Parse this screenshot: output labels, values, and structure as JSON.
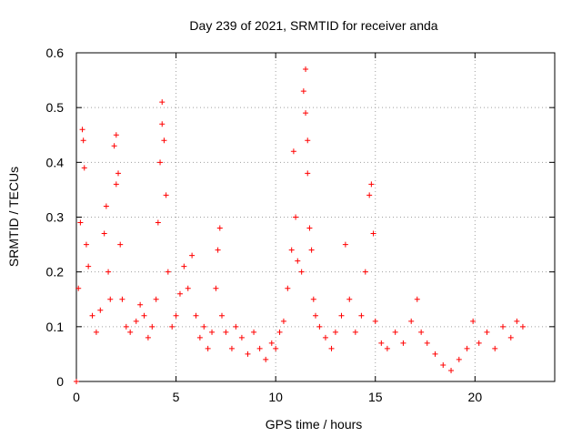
{
  "chart_data": {
    "type": "scatter",
    "title": "Day 239 of 2021, SRMTID for receiver anda",
    "xlabel": "GPS time / hours",
    "ylabel": "SRMTID / TECUs",
    "xlim": [
      0,
      24
    ],
    "ylim": [
      0,
      0.6
    ],
    "xticks": [
      0,
      5,
      10,
      15,
      20
    ],
    "xtick_labels": [
      "0",
      "5",
      "10",
      "15",
      "20"
    ],
    "yticks": [
      0,
      0.1,
      0.2,
      0.3,
      0.4,
      0.5,
      0.6
    ],
    "ytick_labels": [
      "0",
      "0.1",
      "0.2",
      "0.3",
      "0.4",
      "0.5",
      "0.6"
    ],
    "grid": true,
    "marker": "+",
    "series": [
      {
        "name": "SRMTID",
        "color": "#ff0000",
        "points": [
          [
            0.0,
            0.0
          ],
          [
            0.1,
            0.17
          ],
          [
            0.2,
            0.29
          ],
          [
            0.3,
            0.46
          ],
          [
            0.35,
            0.44
          ],
          [
            0.4,
            0.39
          ],
          [
            0.5,
            0.25
          ],
          [
            0.6,
            0.21
          ],
          [
            0.8,
            0.12
          ],
          [
            1.0,
            0.09
          ],
          [
            1.2,
            0.13
          ],
          [
            1.4,
            0.27
          ],
          [
            1.5,
            0.32
          ],
          [
            1.6,
            0.2
          ],
          [
            1.7,
            0.15
          ],
          [
            1.9,
            0.43
          ],
          [
            2.0,
            0.45
          ],
          [
            2.0,
            0.36
          ],
          [
            2.1,
            0.38
          ],
          [
            2.2,
            0.25
          ],
          [
            2.3,
            0.15
          ],
          [
            2.5,
            0.1
          ],
          [
            2.7,
            0.09
          ],
          [
            3.0,
            0.11
          ],
          [
            3.2,
            0.14
          ],
          [
            3.4,
            0.12
          ],
          [
            3.6,
            0.08
          ],
          [
            3.8,
            0.1
          ],
          [
            4.0,
            0.15
          ],
          [
            4.1,
            0.29
          ],
          [
            4.2,
            0.4
          ],
          [
            4.3,
            0.47
          ],
          [
            4.3,
            0.51
          ],
          [
            4.4,
            0.44
          ],
          [
            4.5,
            0.34
          ],
          [
            4.6,
            0.2
          ],
          [
            4.8,
            0.1
          ],
          [
            5.0,
            0.12
          ],
          [
            5.2,
            0.16
          ],
          [
            5.4,
            0.21
          ],
          [
            5.6,
            0.17
          ],
          [
            5.8,
            0.23
          ],
          [
            6.0,
            0.12
          ],
          [
            6.2,
            0.08
          ],
          [
            6.4,
            0.1
          ],
          [
            6.6,
            0.06
          ],
          [
            6.8,
            0.09
          ],
          [
            7.0,
            0.17
          ],
          [
            7.1,
            0.24
          ],
          [
            7.2,
            0.28
          ],
          [
            7.3,
            0.12
          ],
          [
            7.5,
            0.09
          ],
          [
            7.8,
            0.06
          ],
          [
            8.0,
            0.1
          ],
          [
            8.3,
            0.08
          ],
          [
            8.6,
            0.05
          ],
          [
            8.9,
            0.09
          ],
          [
            9.2,
            0.06
          ],
          [
            9.5,
            0.04
          ],
          [
            9.8,
            0.07
          ],
          [
            10.0,
            0.06
          ],
          [
            10.2,
            0.09
          ],
          [
            10.4,
            0.11
          ],
          [
            10.6,
            0.17
          ],
          [
            10.8,
            0.24
          ],
          [
            10.9,
            0.42
          ],
          [
            11.0,
            0.3
          ],
          [
            11.1,
            0.22
          ],
          [
            11.3,
            0.2
          ],
          [
            11.4,
            0.53
          ],
          [
            11.5,
            0.57
          ],
          [
            11.5,
            0.49
          ],
          [
            11.6,
            0.44
          ],
          [
            11.6,
            0.38
          ],
          [
            11.7,
            0.28
          ],
          [
            11.8,
            0.24
          ],
          [
            11.9,
            0.15
          ],
          [
            12.0,
            0.12
          ],
          [
            12.2,
            0.1
          ],
          [
            12.5,
            0.08
          ],
          [
            12.8,
            0.06
          ],
          [
            13.0,
            0.09
          ],
          [
            13.3,
            0.12
          ],
          [
            13.5,
            0.25
          ],
          [
            13.7,
            0.15
          ],
          [
            14.0,
            0.09
          ],
          [
            14.3,
            0.12
          ],
          [
            14.5,
            0.2
          ],
          [
            14.7,
            0.34
          ],
          [
            14.8,
            0.36
          ],
          [
            14.9,
            0.27
          ],
          [
            15.0,
            0.11
          ],
          [
            15.3,
            0.07
          ],
          [
            15.6,
            0.06
          ],
          [
            16.0,
            0.09
          ],
          [
            16.4,
            0.07
          ],
          [
            16.8,
            0.11
          ],
          [
            17.1,
            0.15
          ],
          [
            17.3,
            0.09
          ],
          [
            17.6,
            0.07
          ],
          [
            18.0,
            0.05
          ],
          [
            18.4,
            0.03
          ],
          [
            18.8,
            0.02
          ],
          [
            19.2,
            0.04
          ],
          [
            19.6,
            0.06
          ],
          [
            19.9,
            0.11
          ],
          [
            20.2,
            0.07
          ],
          [
            20.6,
            0.09
          ],
          [
            21.0,
            0.06
          ],
          [
            21.4,
            0.1
          ],
          [
            21.8,
            0.08
          ],
          [
            22.1,
            0.11
          ],
          [
            22.4,
            0.1
          ]
        ]
      }
    ]
  }
}
